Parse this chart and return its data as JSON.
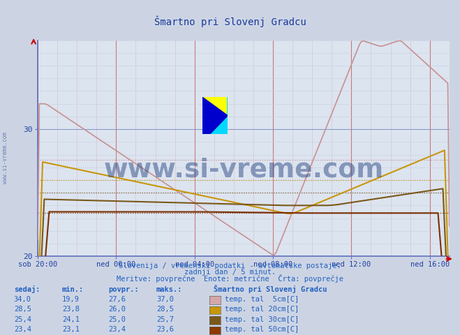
{
  "title": "Šmartno pri Slovenj Gradcu",
  "background_color": "#ccd4e4",
  "plot_bg_color": "#dce4f0",
  "ylabel": "",
  "xlabel": "",
  "ylim": [
    20,
    37
  ],
  "yticks": [
    20,
    30
  ],
  "xmin": 0,
  "xmax": 252,
  "xtick_labels": [
    "sob 20:00",
    "ned 00:00",
    "ned 04:00",
    "ned 08:00",
    "ned 12:00",
    "ned 16:00"
  ],
  "xtick_positions": [
    0,
    48,
    96,
    144,
    192,
    240
  ],
  "subtitle1": "Slovenija / vremenski podatki - avtomatske postaje.",
  "subtitle2": "zadnji dan / 5 minut.",
  "subtitle3": "Meritve: povprečne  Enote: metrične  Črta: povprečje",
  "legend_title": "Šmartno pri Slovenj Gradcu",
  "table_headers": [
    "sedaj:",
    "min.:",
    "povpr.:",
    "maks.:"
  ],
  "table_data": [
    [
      34.0,
      19.9,
      27.6,
      37.0,
      "temp. tal  5cm[C]"
    ],
    [
      28.5,
      23.8,
      26.0,
      28.5,
      "temp. tal 20cm[C]"
    ],
    [
      25.4,
      24.1,
      25.0,
      25.7,
      "temp. tal 30cm[C]"
    ],
    [
      23.4,
      23.1,
      23.4,
      23.6,
      "temp. tal 50cm[C]"
    ]
  ],
  "line_colors": [
    "#c89090",
    "#c8960a",
    "#7a5818",
    "#7a3000"
  ],
  "line_colors_legend": [
    "#d4a8a8",
    "#c8960a",
    "#7a5818",
    "#8b3a00"
  ],
  "watermark_text": "www.si-vreme.com",
  "watermark_color": "#1a3a7a",
  "watermark_alpha": 0.45,
  "axis_color": "#6070c0",
  "tick_color": "#2040a0",
  "title_color": "#1a3a9a",
  "subtitle_color": "#2060c0",
  "table_color": "#2060c0",
  "avg_line_colors": [
    "#c89090",
    "#c8960a",
    "#7a5818",
    "#7a3000"
  ],
  "avg_values": [
    27.6,
    26.0,
    25.0,
    23.4
  ]
}
